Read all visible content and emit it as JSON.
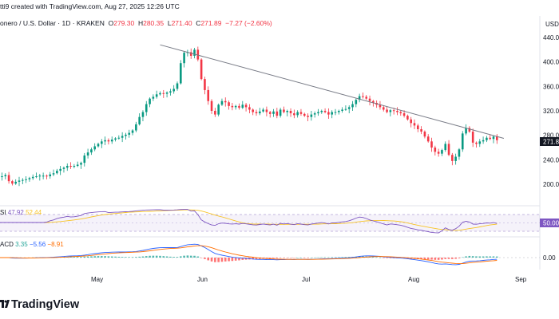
{
  "header": {
    "created_line": "tti9 created with TradingView.com, Aug 27, 2025 12:26 UTC",
    "symbol": "onero / U.S. Dollar · 1D · KRAKEN",
    "o_label": "O",
    "o_val": "279.30",
    "h_label": "H",
    "h_val": "280.35",
    "l_label": "L",
    "l_val": "271.40",
    "c_label": "C",
    "c_val": "271.89",
    "change": "−7.27 (−2.60%)"
  },
  "price_axis": {
    "currency": "USD",
    "ticks": [
      "440.00",
      "400.00",
      "360.00",
      "320.00",
      "280.00",
      "240.00",
      "200.00"
    ],
    "last_price_label": "271.89"
  },
  "rsi": {
    "label": "SI",
    "value1": "47.92",
    "value2": "52.44",
    "axis_tick": "50.00"
  },
  "macd": {
    "label": "ACD",
    "hist": "3.35",
    "macd": "−5.56",
    "signal": "−8.91",
    "axis_tick": "0.00"
  },
  "time_axis": {
    "ticks": [
      "May",
      "Jun",
      "Jul",
      "Aug",
      "Sep"
    ]
  },
  "footer": {
    "brand": "TradingView"
  },
  "colors": {
    "up": "#089981",
    "down": "#f23645",
    "rsi_line": "#7e57c2",
    "rsi_ma": "#f7c325",
    "macd_line": "#2962ff",
    "signal_line": "#ff6d00",
    "trendline": "#787b86"
  },
  "chart_data": {
    "type": "candlestick",
    "timeframe": "1D",
    "ylim": [
      175,
      460
    ],
    "y_ticks": [
      200,
      240,
      280,
      320,
      360,
      400,
      440
    ],
    "x_ticks": [
      "May",
      "Jun",
      "Jul",
      "Aug",
      "Sep"
    ],
    "trendline": {
      "from": {
        "date": "2025-05-19",
        "price": 428
      },
      "to": {
        "date": "2025-08-27",
        "price": 275
      }
    },
    "close_series": {
      "start_date": "2025-04-01",
      "values": [
        212,
        212,
        213,
        215,
        205,
        201,
        204,
        206,
        207,
        208,
        210,
        212,
        213,
        214,
        214,
        213,
        216,
        218,
        222,
        225,
        227,
        230,
        229,
        230,
        232,
        235,
        247,
        252,
        257,
        262,
        266,
        270,
        272,
        270,
        273,
        275,
        276,
        279,
        281,
        284,
        288,
        298,
        310,
        318,
        331,
        340,
        343,
        347,
        349,
        348,
        350,
        352,
        356,
        365,
        398,
        415,
        416,
        410,
        420,
        404,
        372,
        354,
        336,
        320,
        314,
        330,
        336,
        334,
        328,
        326,
        328,
        325,
        330,
        326,
        322,
        318,
        316,
        319,
        322,
        318,
        315,
        319,
        312,
        322,
        318,
        320,
        316,
        313,
        318,
        315,
        312,
        310,
        314,
        316,
        318,
        320,
        318,
        314,
        318,
        318,
        320,
        322,
        323,
        326,
        331,
        338,
        344,
        343,
        340,
        336,
        333,
        330,
        326,
        322,
        318,
        321,
        320,
        318,
        316,
        312,
        306,
        300,
        296,
        290,
        286,
        278,
        270,
        260,
        253,
        250,
        256,
        266,
        248,
        238,
        245,
        257,
        283,
        292,
        286,
        268,
        266,
        270,
        272,
        276,
        274,
        278,
        272
      ]
    },
    "rsi": {
      "values_last": [
        47.92,
        52.44
      ],
      "level": 50
    },
    "macd": {
      "hist": 3.35,
      "macd": -5.56,
      "signal": -8.91,
      "level": 0
    }
  }
}
